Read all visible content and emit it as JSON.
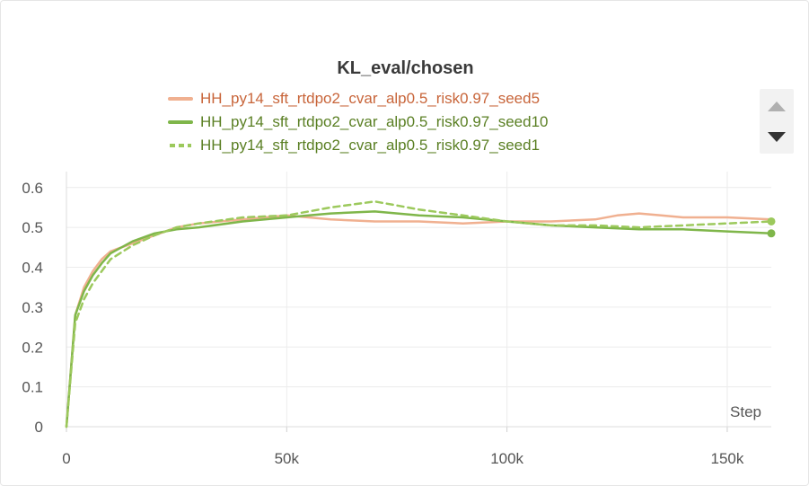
{
  "chart_data": {
    "type": "line",
    "title": "KL_eval/chosen",
    "xlabel": "Step",
    "ylabel": "",
    "xlim": [
      0,
      160000
    ],
    "ylim": [
      0,
      0.64
    ],
    "xticks": [
      0,
      50000,
      100000,
      150000
    ],
    "xtick_labels": [
      "0",
      "50k",
      "100k",
      "150k"
    ],
    "yticks": [
      0,
      0.1,
      0.2,
      0.3,
      0.4,
      0.5,
      0.6
    ],
    "ytick_labels": [
      "0",
      "0.1",
      "0.2",
      "0.3",
      "0.4",
      "0.5",
      "0.6"
    ],
    "grid": true,
    "legend_position": "top",
    "series": [
      {
        "name": "HH_py14_sft_rtdpo2_cvar_alp0.5_risk0.97_seed5",
        "color": "#f0b090",
        "text_color": "#c8653a",
        "dash": "solid",
        "x": [
          0,
          2000,
          4000,
          6000,
          8000,
          10000,
          15000,
          20000,
          25000,
          30000,
          40000,
          50000,
          55000,
          60000,
          70000,
          80000,
          90000,
          100000,
          110000,
          120000,
          125000,
          130000,
          135000,
          140000,
          150000,
          160000
        ],
        "y": [
          0,
          0.28,
          0.35,
          0.39,
          0.42,
          0.44,
          0.46,
          0.48,
          0.5,
          0.51,
          0.52,
          0.53,
          0.525,
          0.52,
          0.515,
          0.515,
          0.51,
          0.515,
          0.515,
          0.52,
          0.53,
          0.535,
          0.53,
          0.525,
          0.525,
          0.52
        ]
      },
      {
        "name": "HH_py14_sft_rtdpo2_cvar_alp0.5_risk0.97_seed10",
        "color": "#7fb64a",
        "text_color": "#5a7f23",
        "dash": "solid",
        "x": [
          0,
          2000,
          4000,
          6000,
          8000,
          10000,
          15000,
          20000,
          25000,
          30000,
          40000,
          50000,
          55000,
          60000,
          70000,
          80000,
          90000,
          100000,
          110000,
          120000,
          130000,
          140000,
          150000,
          160000
        ],
        "y": [
          0,
          0.28,
          0.34,
          0.38,
          0.41,
          0.435,
          0.465,
          0.485,
          0.495,
          0.5,
          0.515,
          0.525,
          0.53,
          0.535,
          0.54,
          0.53,
          0.525,
          0.515,
          0.505,
          0.5,
          0.495,
          0.495,
          0.49,
          0.485
        ]
      },
      {
        "name": "HH_py14_sft_rtdpo2_cvar_alp0.5_risk0.97_seed1",
        "color": "#9cc95c",
        "text_color": "#5a7f23",
        "dash": "dashed",
        "x": [
          0,
          2000,
          4000,
          6000,
          8000,
          10000,
          15000,
          20000,
          25000,
          30000,
          40000,
          50000,
          55000,
          60000,
          70000,
          75000,
          80000,
          90000,
          100000,
          110000,
          120000,
          130000,
          140000,
          150000,
          160000
        ],
        "y": [
          0,
          0.26,
          0.32,
          0.36,
          0.39,
          0.42,
          0.455,
          0.48,
          0.5,
          0.51,
          0.525,
          0.53,
          0.54,
          0.55,
          0.565,
          0.555,
          0.545,
          0.53,
          0.515,
          0.505,
          0.505,
          0.5,
          0.505,
          0.51,
          0.515
        ]
      }
    ]
  }
}
